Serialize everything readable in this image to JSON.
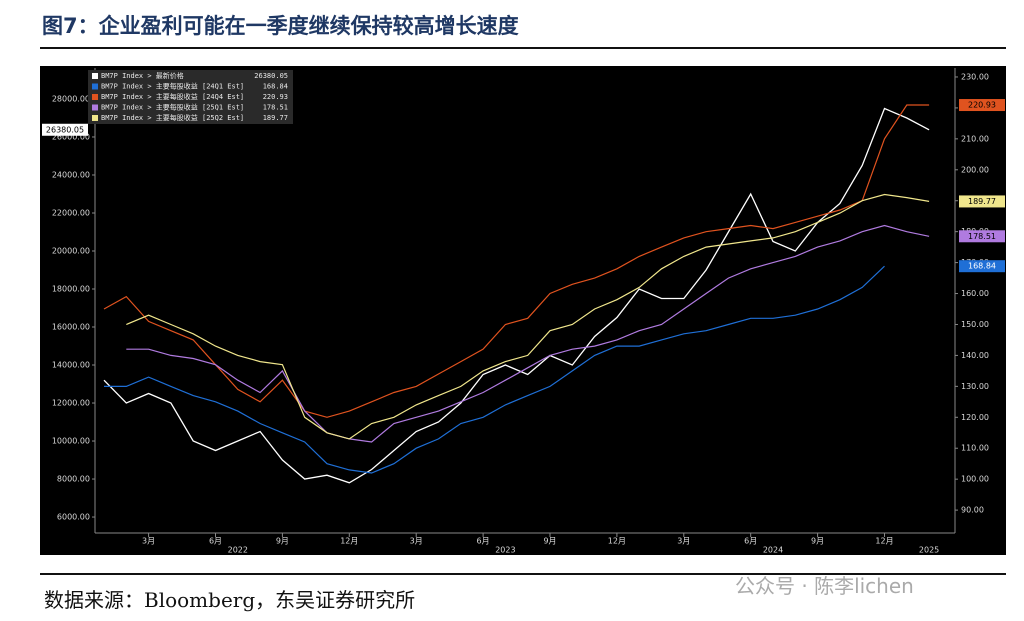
{
  "chart_data": {
    "type": "line",
    "title": "图7：企业盈利可能在一季度继续保持较高增长速度",
    "source": "数据来源：Bloomberg，东吴证券研究所",
    "watermark": "公众号 · 陈李lichen",
    "x": [
      "2022-01",
      "2022-02",
      "2022-03",
      "2022-04",
      "2022-05",
      "2022-06",
      "2022-07",
      "2022-08",
      "2022-09",
      "2022-10",
      "2022-11",
      "2022-12",
      "2023-01",
      "2023-02",
      "2023-03",
      "2023-04",
      "2023-05",
      "2023-06",
      "2023-07",
      "2023-08",
      "2023-09",
      "2023-10",
      "2023-11",
      "2023-12",
      "2024-01",
      "2024-02",
      "2024-03",
      "2024-04",
      "2024-05",
      "2024-06",
      "2024-07",
      "2024-08",
      "2024-09",
      "2024-10",
      "2024-11",
      "2024-12",
      "2025-01",
      "2025-02"
    ],
    "xticks": [
      {
        "value": "2022-03",
        "label": "3月"
      },
      {
        "value": "2022-06",
        "label": "6月"
      },
      {
        "value": "2022-09",
        "label": "9月"
      },
      {
        "value": "2022-12",
        "label": "12月"
      },
      {
        "value": "2023-03",
        "label": "3月"
      },
      {
        "value": "2023-06",
        "label": "6月"
      },
      {
        "value": "2023-09",
        "label": "9月"
      },
      {
        "value": "2023-12",
        "label": "12月"
      },
      {
        "value": "2024-03",
        "label": "3月"
      },
      {
        "value": "2024-06",
        "label": "6月"
      },
      {
        "value": "2024-09",
        "label": "9月"
      },
      {
        "value": "2024-12",
        "label": "12月"
      }
    ],
    "xyears": [
      {
        "value": "2022-07",
        "label": "2022"
      },
      {
        "value": "2023-07",
        "label": "2023"
      },
      {
        "value": "2024-07",
        "label": "2024"
      },
      {
        "value": "2025-02",
        "label": "2025"
      }
    ],
    "ylim": [
      5160,
      29630
    ],
    "yticks": [
      {
        "value": 6000,
        "label": "6000.00"
      },
      {
        "value": 8000,
        "label": "8000.00"
      },
      {
        "value": 10000,
        "label": "10000.00"
      },
      {
        "value": 12000,
        "label": "12000.00"
      },
      {
        "value": 14000,
        "label": "14000.00"
      },
      {
        "value": 16000,
        "label": "16000.00"
      },
      {
        "value": 18000,
        "label": "18000.00"
      },
      {
        "value": 20000,
        "label": "20000.00"
      },
      {
        "value": 22000,
        "label": "22000.00"
      },
      {
        "value": 24000,
        "label": "24000.00"
      },
      {
        "value": 26000,
        "label": "26000.00"
      },
      {
        "value": 28000,
        "label": "28000.00"
      }
    ],
    "y2lim": [
      82.6,
      232.9
    ],
    "y2ticks": [
      {
        "value": 90,
        "label": "90.00"
      },
      {
        "value": 100,
        "label": "100.00"
      },
      {
        "value": 110,
        "label": "110.00"
      },
      {
        "value": 120,
        "label": "120.00"
      },
      {
        "value": 130,
        "label": "130.00"
      },
      {
        "value": 140,
        "label": "140.00"
      },
      {
        "value": 150,
        "label": "150.00"
      },
      {
        "value": 160,
        "label": "160.00"
      },
      {
        "value": 170,
        "label": "170.00"
      },
      {
        "value": 180,
        "label": "180.00"
      },
      {
        "value": 190,
        "label": "190.00"
      },
      {
        "value": 200,
        "label": "200.00"
      },
      {
        "value": 210,
        "label": "210.00"
      },
      {
        "value": 220,
        "label": "220.00"
      },
      {
        "value": 230,
        "label": "230.00"
      }
    ],
    "series": [
      {
        "name": "BM7P Index > 最新价格",
        "color": "#ffffff",
        "axis": "y",
        "values": [
          13200,
          12000,
          12500,
          12000,
          10000,
          9500,
          10000,
          10500,
          9000,
          8000,
          8200,
          7800,
          8500,
          9500,
          10500,
          11000,
          12000,
          13500,
          14000,
          13500,
          14500,
          14000,
          15500,
          16500,
          18000,
          17500,
          17500,
          19000,
          21000,
          23000,
          20500,
          20000,
          21500,
          22500,
          24500,
          27500,
          27000,
          26380.05
        ]
      },
      {
        "name": "BM7P Index > 主要每股收益 [24Q1 Est]",
        "color": "#1f6fd6",
        "axis": "y2",
        "values": [
          130,
          130,
          133,
          130,
          127,
          125,
          122,
          118,
          115,
          112,
          105,
          103,
          102,
          105,
          110,
          113,
          118,
          120,
          124,
          127,
          130,
          135,
          140,
          143,
          143,
          145,
          147,
          148,
          150,
          152,
          152,
          153,
          155,
          158,
          162,
          168.84,
          null,
          null
        ]
      },
      {
        "name": "BM7P Index > 主要每股收益 [24Q4 Est]",
        "color": "#e0531f",
        "axis": "y2",
        "values": [
          155,
          159,
          151,
          148,
          145,
          137,
          129,
          125,
          132,
          122,
          120,
          122,
          125,
          128,
          130,
          134,
          138,
          142,
          150,
          152,
          160,
          163,
          165,
          168,
          172,
          175,
          178,
          180,
          181,
          182,
          181,
          183,
          185,
          187,
          190,
          210,
          220.93,
          220.93
        ]
      },
      {
        "name": "BM7P Index > 主要每股收益 [25Q1 Est]",
        "color": "#b07be0",
        "axis": "y2",
        "values": [
          null,
          142,
          142,
          140,
          139,
          137,
          132,
          128,
          135,
          122,
          115,
          113,
          112,
          118,
          120,
          122,
          125,
          128,
          132,
          136,
          140,
          142,
          143,
          145,
          148,
          150,
          155,
          160,
          165,
          168,
          170,
          172,
          175,
          177,
          180,
          182,
          180,
          178.51
        ]
      },
      {
        "name": "BM7P Index > 主要每股收益 [25Q2 Est]",
        "color": "#f0e68c",
        "axis": "y2",
        "values": [
          null,
          150,
          153,
          150,
          147,
          143,
          140,
          138,
          137,
          120,
          115,
          113,
          118,
          120,
          124,
          127,
          130,
          135,
          138,
          140,
          148,
          150,
          155,
          158,
          162,
          168,
          172,
          175,
          176,
          177,
          178,
          180,
          183,
          186,
          190,
          192,
          191,
          189.77
        ]
      }
    ]
  }
}
